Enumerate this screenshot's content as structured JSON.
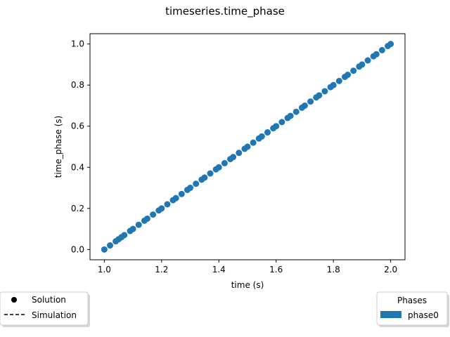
{
  "figure": {
    "suptitle": "timeseries.time_phase"
  },
  "chart_data": {
    "type": "scatter",
    "title": "",
    "xlabel": "time (s)",
    "ylabel": "time_phase (s)",
    "xlim": [
      0.95,
      2.05
    ],
    "ylim": [
      -0.05,
      1.05
    ],
    "xticks": [
      1.0,
      1.2,
      1.4,
      1.6,
      1.8,
      2.0
    ],
    "xtick_labels": [
      "1.0",
      "1.2",
      "1.4",
      "1.6",
      "1.8",
      "2.0"
    ],
    "yticks": [
      0.0,
      0.2,
      0.4,
      0.6,
      0.8,
      1.0
    ],
    "ytick_labels": [
      "0.0",
      "0.2",
      "0.4",
      "0.6",
      "0.8",
      "1.0"
    ],
    "grid": false,
    "series": [
      {
        "name": "phase0",
        "color": "#1f77b4",
        "marker": "circle",
        "x": [
          1.0,
          1.02,
          1.04,
          1.05,
          1.06,
          1.07,
          1.09,
          1.1,
          1.12,
          1.14,
          1.15,
          1.17,
          1.19,
          1.2,
          1.22,
          1.24,
          1.25,
          1.27,
          1.29,
          1.3,
          1.32,
          1.34,
          1.35,
          1.37,
          1.39,
          1.4,
          1.42,
          1.44,
          1.45,
          1.47,
          1.49,
          1.5,
          1.52,
          1.54,
          1.55,
          1.57,
          1.59,
          1.6,
          1.62,
          1.64,
          1.65,
          1.67,
          1.69,
          1.7,
          1.72,
          1.74,
          1.75,
          1.77,
          1.79,
          1.8,
          1.82,
          1.84,
          1.85,
          1.87,
          1.89,
          1.9,
          1.92,
          1.94,
          1.95,
          1.97,
          1.99,
          2.0
        ],
        "y": [
          0.0,
          0.02,
          0.04,
          0.05,
          0.06,
          0.07,
          0.09,
          0.1,
          0.12,
          0.14,
          0.15,
          0.17,
          0.19,
          0.2,
          0.22,
          0.24,
          0.25,
          0.27,
          0.29,
          0.3,
          0.32,
          0.34,
          0.35,
          0.37,
          0.39,
          0.4,
          0.42,
          0.44,
          0.45,
          0.47,
          0.49,
          0.5,
          0.52,
          0.54,
          0.55,
          0.57,
          0.59,
          0.6,
          0.62,
          0.64,
          0.65,
          0.67,
          0.69,
          0.7,
          0.72,
          0.74,
          0.75,
          0.77,
          0.79,
          0.8,
          0.82,
          0.84,
          0.85,
          0.87,
          0.89,
          0.9,
          0.92,
          0.94,
          0.95,
          0.97,
          0.99,
          1.0
        ]
      }
    ]
  },
  "legend_left": {
    "items": [
      {
        "label": "Solution",
        "marker": "dot"
      },
      {
        "label": "Simulation",
        "marker": "dashed-line"
      }
    ]
  },
  "legend_right": {
    "title": "Phases",
    "items": [
      {
        "label": "phase0",
        "color": "#1f77b4"
      }
    ]
  }
}
